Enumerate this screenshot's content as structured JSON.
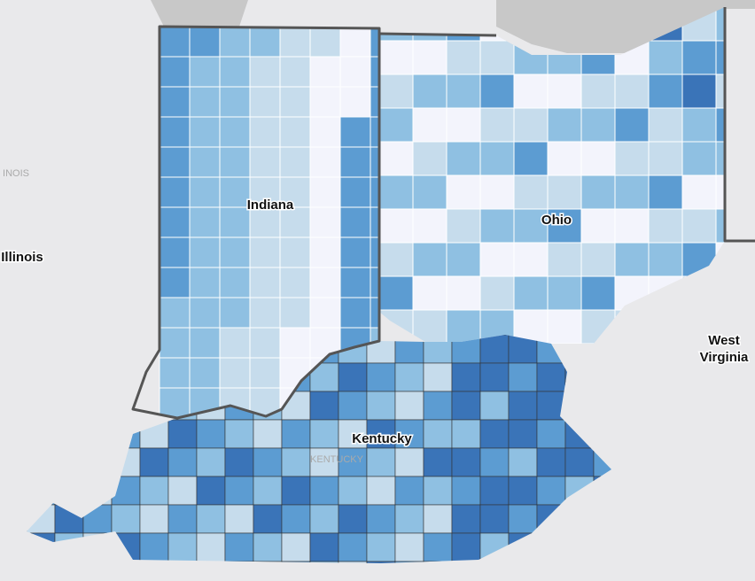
{
  "map": {
    "labels": {
      "indiana": "Indiana",
      "ohio": "Ohio",
      "kentucky": "Kentucky",
      "illinois": "Illinois",
      "illinois_faint": "INOIS",
      "kentucky_faint": "KENTUCKY",
      "west_virginia": [
        "West",
        "Virginia"
      ]
    }
  }
}
